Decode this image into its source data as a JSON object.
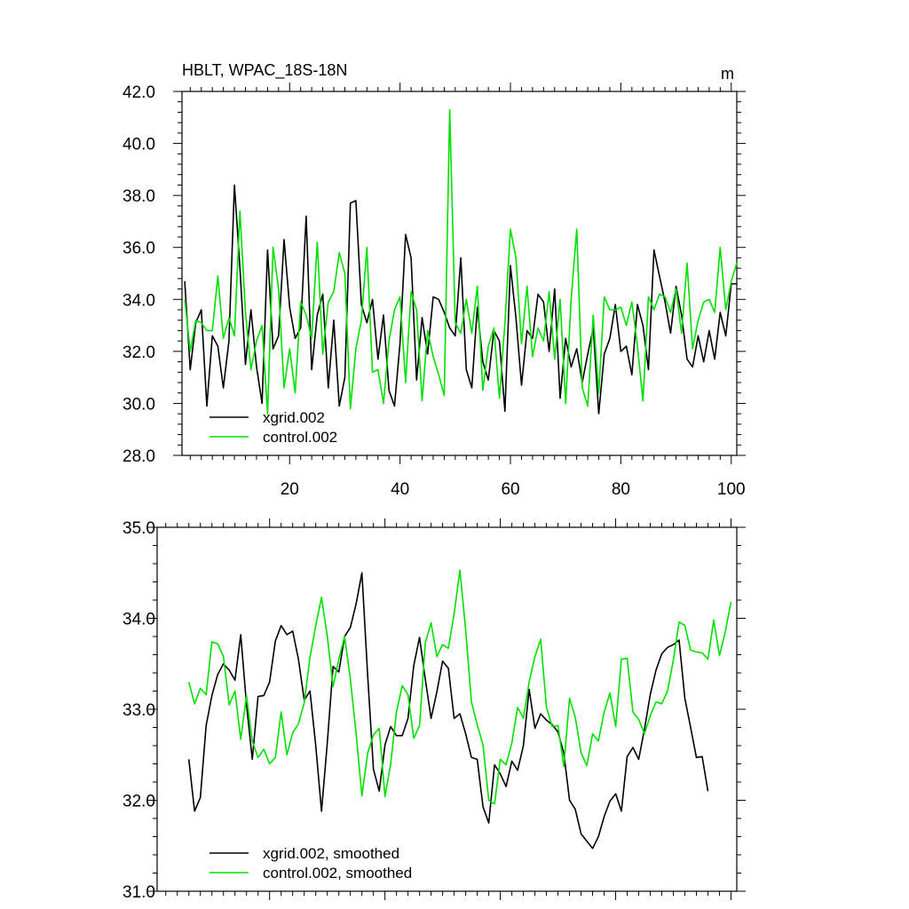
{
  "charts": [
    {
      "type": "line",
      "title": "HBLT, WPAC_18S-18N",
      "units_label": "m",
      "xlabel": "",
      "ylabel": "",
      "xlim": [
        0.5,
        101
      ],
      "ylim": [
        28,
        42
      ],
      "yticks": [
        "28.0",
        "30.0",
        "32.0",
        "34.0",
        "36.0",
        "38.0",
        "40.0",
        "42.0"
      ],
      "xticks": [
        "20",
        "40",
        "60",
        "80",
        "100"
      ],
      "legend_position": "bottom-left",
      "grid": false,
      "series": [
        {
          "name": "xgrid.002",
          "color": "#000000",
          "x": [
            1,
            2,
            3,
            4,
            5,
            6,
            7,
            8,
            9,
            10,
            11,
            12,
            13,
            14,
            15,
            16,
            17,
            18,
            19,
            20,
            21,
            22,
            23,
            24,
            25,
            26,
            27,
            28,
            29,
            30,
            31,
            32,
            33,
            34,
            35,
            36,
            37,
            38,
            39,
            40,
            41,
            42,
            43,
            44,
            45,
            46,
            47,
            48,
            49,
            50,
            51,
            52,
            53,
            54,
            55,
            56,
            57,
            58,
            59,
            60,
            61,
            62,
            63,
            64,
            65,
            66,
            67,
            68,
            69,
            70,
            71,
            72,
            73,
            74,
            75,
            76,
            77,
            78,
            79,
            80,
            81,
            82,
            83,
            84,
            85,
            86,
            87,
            88,
            89,
            90,
            91,
            92,
            93,
            94,
            95,
            96,
            97,
            98,
            99,
            100,
            101
          ],
          "values": [
            34.7,
            31.3,
            33.1,
            33.6,
            29.9,
            32.6,
            32.2,
            30.6,
            32.4,
            38.4,
            35.2,
            31.5,
            33.6,
            31.4,
            30.0,
            35.9,
            32.1,
            32.6,
            36.3,
            33.7,
            32.5,
            32.9,
            37.2,
            31.3,
            33.4,
            34.2,
            30.6,
            33.2,
            29.9,
            31.0,
            37.7,
            37.8,
            33.8,
            33.1,
            34.0,
            31.7,
            33.4,
            30.5,
            29.9,
            32.3,
            36.5,
            35.6,
            30.9,
            33.3,
            31.9,
            34.1,
            34.0,
            33.5,
            32.9,
            32.6,
            35.6,
            31.3,
            30.6,
            33.7,
            31.6,
            30.9,
            32.8,
            32.4,
            29.7,
            35.3,
            33.3,
            30.7,
            32.8,
            32.5,
            34.2,
            33.9,
            32.0,
            34.4,
            30.2,
            32.5,
            31.4,
            32.1,
            30.8,
            31.9,
            32.9,
            29.6,
            31.9,
            32.5,
            33.8,
            32.0,
            32.2,
            31.1,
            33.8,
            33.0,
            31.3,
            35.9,
            34.9,
            33.9,
            32.7,
            34.5,
            33.4,
            31.7,
            31.4,
            32.6,
            31.6,
            32.8,
            31.7,
            33.5,
            32.6,
            34.6,
            34.6
          ]
        },
        {
          "name": "control.002",
          "color": "#00e000",
          "x": [
            1,
            2,
            3,
            4,
            5,
            6,
            7,
            8,
            9,
            10,
            11,
            12,
            13,
            14,
            15,
            16,
            17,
            18,
            19,
            20,
            21,
            22,
            23,
            24,
            25,
            26,
            27,
            28,
            29,
            30,
            31,
            32,
            33,
            34,
            35,
            36,
            37,
            38,
            39,
            40,
            41,
            42,
            43,
            44,
            45,
            46,
            47,
            48,
            49,
            50,
            51,
            52,
            53,
            54,
            55,
            56,
            57,
            58,
            59,
            60,
            61,
            62,
            63,
            64,
            65,
            66,
            67,
            68,
            69,
            70,
            71,
            72,
            73,
            74,
            75,
            76,
            77,
            78,
            79,
            80,
            81,
            82,
            83,
            84,
            85,
            86,
            87,
            88,
            89,
            90,
            91,
            92,
            93,
            94,
            95,
            96,
            97,
            98,
            99,
            100,
            101
          ],
          "values": [
            34.0,
            32.0,
            33.2,
            33.1,
            32.8,
            32.8,
            34.9,
            32.5,
            33.3,
            32.6,
            37.4,
            33.5,
            31.3,
            32.4,
            33.0,
            29.6,
            36.0,
            34.4,
            30.6,
            32.1,
            30.4,
            33.9,
            33.4,
            32.5,
            36.2,
            31.9,
            33.9,
            34.3,
            35.8,
            35.0,
            29.8,
            32.1,
            33.2,
            36.0,
            31.2,
            31.3,
            30.0,
            32.4,
            33.6,
            34.1,
            30.8,
            34.3,
            33.6,
            30.1,
            32.8,
            31.8,
            31.1,
            30.3,
            41.3,
            33.1,
            32.7,
            34.0,
            32.7,
            34.5,
            30.5,
            32.2,
            32.9,
            30.2,
            33.1,
            36.7,
            35.6,
            32.3,
            34.5,
            31.8,
            32.9,
            32.4,
            34.3,
            31.7,
            34.0,
            30.0,
            34.0,
            36.7,
            30.6,
            29.9,
            33.4,
            30.4,
            34.1,
            33.6,
            33.6,
            33.7,
            33.0,
            33.9,
            32.2,
            30.1,
            34.1,
            33.6,
            34.2,
            34.1,
            33.5,
            34.4,
            32.7,
            35.4,
            32.1,
            33.2,
            33.9,
            34.0,
            33.5,
            36.0,
            33.6,
            34.7,
            35.4
          ]
        }
      ]
    },
    {
      "type": "line",
      "title": "",
      "xlabel": "",
      "ylabel": "",
      "xlim": [
        0.5,
        101
      ],
      "ylim": [
        31,
        35
      ],
      "yticks": [
        "31.0",
        "32.0",
        "33.0",
        "34.0",
        "35.0"
      ],
      "xticks": [],
      "legend_position": "bottom-left",
      "grid": false,
      "series": [
        {
          "name": "xgrid.002, smoothed",
          "color": "#000000",
          "x": [
            6,
            7,
            8,
            9,
            10,
            11,
            12,
            13,
            14,
            15,
            16,
            17,
            18,
            19,
            20,
            21,
            22,
            23,
            24,
            25,
            26,
            27,
            28,
            29,
            30,
            31,
            32,
            33,
            34,
            35,
            36,
            37,
            38,
            39,
            40,
            41,
            42,
            43,
            44,
            45,
            46,
            47,
            48,
            49,
            50,
            51,
            52,
            53,
            54,
            55,
            56,
            57,
            58,
            59,
            60,
            61,
            62,
            63,
            64,
            65,
            66,
            67,
            68,
            69,
            70,
            71,
            72,
            73,
            74,
            75,
            76,
            77,
            78,
            79,
            80,
            81,
            82,
            83,
            84,
            85,
            86,
            87,
            88,
            89,
            90,
            91,
            92,
            93,
            94,
            95,
            96
          ],
          "values": [
            32.45,
            31.88,
            32.03,
            32.82,
            33.15,
            33.38,
            33.5,
            33.43,
            33.32,
            33.82,
            33.05,
            32.45,
            33.14,
            33.15,
            33.3,
            33.75,
            33.92,
            33.82,
            33.86,
            33.55,
            33.1,
            33.2,
            32.6,
            31.88,
            32.63,
            33.47,
            33.41,
            33.8,
            33.9,
            34.16,
            34.5,
            33.37,
            32.34,
            32.1,
            32.61,
            32.81,
            32.71,
            32.71,
            32.9,
            33.48,
            33.79,
            33.33,
            32.9,
            33.19,
            33.53,
            33.45,
            32.9,
            32.95,
            32.73,
            32.47,
            32.45,
            31.93,
            31.75,
            32.39,
            32.29,
            32.15,
            32.43,
            32.33,
            32.6,
            33.22,
            32.79,
            32.95,
            32.88,
            32.83,
            32.75,
            32.52,
            32.0,
            31.9,
            31.63,
            31.55,
            31.47,
            31.6,
            31.82,
            31.99,
            32.07,
            31.88,
            32.48,
            32.58,
            32.45,
            32.78,
            33.16,
            33.43,
            33.61,
            33.68,
            33.71,
            33.76,
            33.12,
            32.8,
            32.47,
            32.48,
            32.1
          ]
        },
        {
          "name": "control.002, smoothed",
          "color": "#00e000",
          "x": [
            6,
            7,
            8,
            9,
            10,
            11,
            12,
            13,
            14,
            15,
            16,
            17,
            18,
            19,
            20,
            21,
            22,
            23,
            24,
            25,
            26,
            27,
            28,
            29,
            30,
            31,
            32,
            33,
            34,
            35,
            36,
            37,
            38,
            39,
            40,
            41,
            42,
            43,
            44,
            45,
            46,
            47,
            48,
            49,
            50,
            51,
            52,
            53,
            54,
            55,
            56,
            57,
            58,
            59,
            60,
            61,
            62,
            63,
            64,
            65,
            66,
            67,
            68,
            69,
            70,
            71,
            72,
            73,
            74,
            75,
            76,
            77,
            78,
            79,
            80,
            81,
            82,
            83,
            84,
            85,
            86,
            87,
            88,
            89,
            90,
            91,
            92,
            93,
            94,
            95,
            96,
            97,
            98,
            99,
            100
          ],
          "values": [
            33.3,
            33.06,
            33.23,
            33.16,
            33.74,
            33.72,
            33.58,
            33.05,
            33.2,
            32.67,
            33.15,
            32.65,
            32.47,
            32.56,
            32.4,
            32.47,
            32.97,
            32.5,
            32.74,
            32.84,
            33.07,
            33.57,
            33.92,
            34.23,
            33.8,
            33.25,
            33.55,
            33.8,
            33.33,
            32.73,
            32.05,
            32.52,
            32.72,
            32.79,
            32.04,
            32.4,
            32.97,
            33.26,
            33.16,
            32.68,
            32.82,
            33.73,
            33.95,
            33.58,
            33.71,
            33.67,
            34.05,
            34.53,
            33.87,
            33.08,
            32.83,
            32.61,
            32.0,
            31.96,
            32.45,
            32.39,
            32.63,
            33.02,
            32.9,
            33.3,
            33.58,
            33.77,
            33.02,
            32.81,
            32.82,
            32.37,
            33.12,
            32.91,
            32.52,
            32.38,
            32.73,
            32.65,
            32.97,
            33.18,
            32.81,
            33.55,
            33.56,
            32.97,
            32.89,
            32.73,
            32.93,
            33.08,
            33.06,
            33.2,
            33.54,
            33.96,
            33.92,
            33.65,
            33.63,
            33.62,
            33.55,
            33.98,
            33.59,
            33.85,
            34.18
          ]
        }
      ]
    }
  ]
}
